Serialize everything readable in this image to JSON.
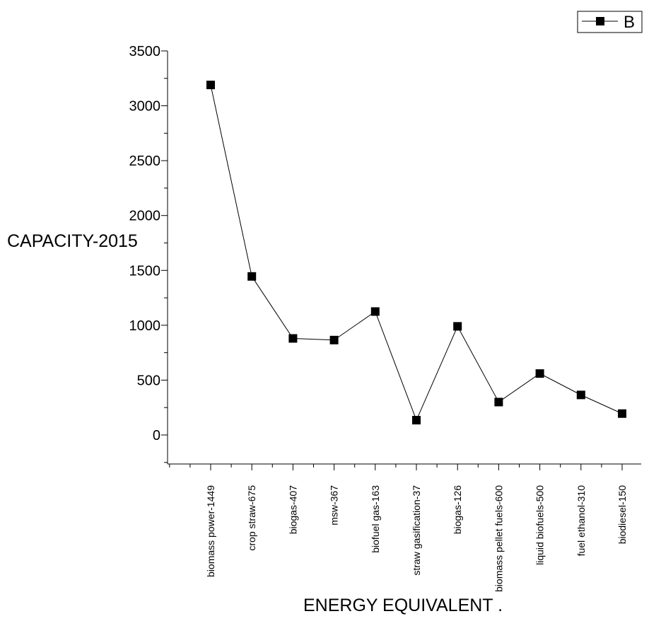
{
  "chart_data": {
    "type": "line",
    "title": "",
    "xlabel": "ENERGY EQUIVALENT .",
    "ylabel": "CAPACITY-2015",
    "ylim": [
      -250,
      3500
    ],
    "yticks": [
      0,
      500,
      1000,
      1500,
      2000,
      2500,
      3000,
      3500
    ],
    "categories": [
      "biomass power-1449",
      "crop straw-675",
      "biogas-407",
      "msw-367",
      "biofuel gas-163",
      "straw gasification-37",
      "biogas-126",
      "biomass pellet fuels-600",
      "liquid biofuels-500",
      "fuel ethanol-310",
      "biodiesel-150"
    ],
    "series": [
      {
        "name": "B",
        "color": "#000000",
        "marker": "square",
        "values": [
          3190,
          1445,
          880,
          865,
          1125,
          135,
          990,
          300,
          560,
          365,
          195
        ]
      }
    ],
    "legend": {
      "position": "top-right",
      "entries": [
        "B"
      ]
    },
    "grid": false
  }
}
